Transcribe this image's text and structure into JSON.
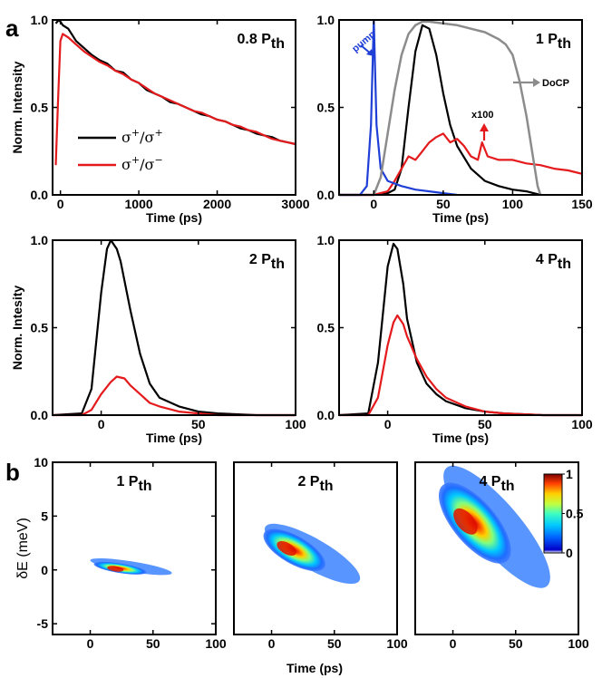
{
  "panel_labels": [
    "a",
    "b"
  ],
  "legend": {
    "entries": [
      {
        "label_main": "σ",
        "sup1": "+",
        "slash": "/",
        "label_main2": "σ",
        "sup2": "+",
        "color": "#000000"
      },
      {
        "label_main": "σ",
        "sup1": "+",
        "slash": "/",
        "label_main2": "σ",
        "sup2": "−",
        "color": "#e41a1c"
      }
    ]
  },
  "colors": {
    "co_polarized": "#000000",
    "cross_polarized": "#e41a1c",
    "pump": "#1f3fd6",
    "docp": "#8c8c8c"
  },
  "chart_data": [
    {
      "id": "a1",
      "type": "line",
      "annotation": {
        "main": "0.8 P",
        "sub": "th"
      },
      "xlabel": "Time (ps)",
      "ylabel": "Norm. Intensity",
      "xlim": [
        -100,
        3000
      ],
      "ylim": [
        0,
        1.0
      ],
      "xticks": [
        0,
        1000,
        2000,
        3000
      ],
      "yticks": [
        0.0,
        0.5,
        1.0
      ],
      "series": [
        {
          "key": "co",
          "x": [
            -60,
            -20,
            0,
            30,
            100,
            200,
            300,
            400,
            500,
            600,
            700,
            800,
            900,
            1000,
            1100,
            1200,
            1300,
            1400,
            1500,
            1600,
            1700,
            1800,
            1900,
            2000,
            2100,
            2200,
            2300,
            2400,
            2500,
            2600,
            2700,
            2800,
            2900,
            3000
          ],
          "y": [
            0.98,
            1.0,
            0.99,
            0.97,
            0.95,
            0.88,
            0.84,
            0.8,
            0.77,
            0.75,
            0.71,
            0.7,
            0.66,
            0.64,
            0.6,
            0.58,
            0.56,
            0.53,
            0.52,
            0.5,
            0.48,
            0.46,
            0.45,
            0.43,
            0.42,
            0.4,
            0.38,
            0.37,
            0.35,
            0.34,
            0.33,
            0.31,
            0.3,
            0.29
          ]
        },
        {
          "key": "cross",
          "x": [
            -60,
            -30,
            0,
            30,
            100,
            200,
            300,
            400,
            500,
            600,
            700,
            800,
            900,
            1000,
            1100,
            1200,
            1300,
            1400,
            1500,
            1600,
            1700,
            1800,
            1900,
            2000,
            2100,
            2200,
            2300,
            2400,
            2500,
            2600,
            2700,
            2800,
            2900,
            3000
          ],
          "y": [
            0.17,
            0.55,
            0.88,
            0.92,
            0.9,
            0.86,
            0.82,
            0.79,
            0.76,
            0.74,
            0.71,
            0.69,
            0.66,
            0.64,
            0.61,
            0.58,
            0.56,
            0.54,
            0.52,
            0.5,
            0.48,
            0.47,
            0.45,
            0.43,
            0.42,
            0.4,
            0.39,
            0.37,
            0.36,
            0.34,
            0.32,
            0.31,
            0.3,
            0.29
          ]
        }
      ]
    },
    {
      "id": "a2",
      "type": "line",
      "annotation": {
        "main": "1 P",
        "sub": "th"
      },
      "xlabel": "Time (ps)",
      "xlim": [
        -25,
        150
      ],
      "ylim": [
        0,
        1.0
      ],
      "xticks": [
        0,
        50,
        100,
        150
      ],
      "yticks": [
        0.0,
        0.5,
        1.0
      ],
      "labels": {
        "pump": "pump",
        "docp": "DoCP",
        "x100": "x100"
      },
      "series": [
        {
          "key": "co",
          "x": [
            -25,
            0,
            10,
            15,
            20,
            25,
            30,
            35,
            40,
            45,
            50,
            55,
            60,
            70,
            80,
            90,
            100,
            110,
            115,
            120
          ],
          "y": [
            0.0,
            0.0,
            0.01,
            0.03,
            0.15,
            0.5,
            0.82,
            0.97,
            0.95,
            0.8,
            0.58,
            0.4,
            0.28,
            0.15,
            0.08,
            0.05,
            0.03,
            0.02,
            0.01,
            0.0
          ]
        },
        {
          "key": "cross",
          "x": [
            -25,
            0,
            10,
            15,
            20,
            25,
            30,
            35,
            40,
            45,
            50,
            55,
            60,
            65,
            70,
            75,
            78,
            82,
            90,
            100,
            110,
            120,
            130,
            140,
            150
          ],
          "y": [
            0.0,
            0.0,
            0.02,
            0.08,
            0.15,
            0.22,
            0.2,
            0.25,
            0.3,
            0.33,
            0.35,
            0.3,
            0.32,
            0.28,
            0.22,
            0.2,
            0.3,
            0.22,
            0.2,
            0.2,
            0.18,
            0.17,
            0.15,
            0.14,
            0.12
          ]
        },
        {
          "key": "pump",
          "x": [
            -25,
            -10,
            -5,
            -2,
            0,
            2,
            5,
            10,
            20,
            30,
            40,
            50,
            60
          ],
          "y": [
            0.0,
            0.0,
            0.05,
            0.4,
            1.0,
            0.4,
            0.15,
            0.08,
            0.05,
            0.03,
            0.02,
            0.01,
            0.0
          ]
        },
        {
          "key": "docp",
          "x": [
            0,
            5,
            10,
            15,
            20,
            25,
            30,
            35,
            40,
            50,
            60,
            70,
            80,
            90,
            95,
            100,
            105,
            110,
            115,
            118,
            120
          ],
          "y": [
            0.0,
            0.1,
            0.35,
            0.6,
            0.8,
            0.92,
            0.97,
            0.99,
            0.99,
            0.98,
            0.97,
            0.95,
            0.93,
            0.89,
            0.86,
            0.8,
            0.65,
            0.45,
            0.2,
            0.05,
            0.0
          ]
        }
      ]
    },
    {
      "id": "a3",
      "type": "line",
      "annotation": {
        "main": "2 P",
        "sub": "th"
      },
      "xlabel": "Time (ps)",
      "ylabel": "Norm. Intesity",
      "xlim": [
        -25,
        100
      ],
      "ylim": [
        0,
        1.0
      ],
      "xticks": [
        0,
        50,
        100
      ],
      "yticks": [
        0.0,
        0.5,
        1.0
      ],
      "series": [
        {
          "key": "co",
          "x": [
            -25,
            -10,
            -5,
            0,
            3,
            5,
            8,
            10,
            15,
            20,
            25,
            30,
            40,
            50,
            60,
            80,
            100
          ],
          "y": [
            0.0,
            0.01,
            0.15,
            0.7,
            0.95,
            1.0,
            0.95,
            0.88,
            0.6,
            0.35,
            0.18,
            0.1,
            0.05,
            0.02,
            0.01,
            0.0,
            0.0
          ]
        },
        {
          "key": "cross",
          "x": [
            -25,
            -10,
            -5,
            0,
            5,
            8,
            12,
            15,
            20,
            25,
            30,
            40,
            50,
            60,
            80,
            100
          ],
          "y": [
            0.0,
            0.0,
            0.03,
            0.12,
            0.19,
            0.22,
            0.21,
            0.17,
            0.12,
            0.07,
            0.05,
            0.02,
            0.01,
            0.0,
            0.0,
            0.0
          ]
        }
      ]
    },
    {
      "id": "a4",
      "type": "line",
      "annotation": {
        "main": "4 P",
        "sub": "th"
      },
      "xlabel": "Time (ps)",
      "xlim": [
        -25,
        100
      ],
      "ylim": [
        0,
        1.0
      ],
      "xticks": [
        0,
        50,
        100
      ],
      "yticks": [
        0.0,
        0.5,
        1.0
      ],
      "series": [
        {
          "key": "co",
          "x": [
            -25,
            -10,
            -5,
            0,
            3,
            5,
            8,
            10,
            15,
            20,
            25,
            30,
            40,
            50,
            60,
            80,
            100
          ],
          "y": [
            0.0,
            0.01,
            0.3,
            0.85,
            0.98,
            0.95,
            0.75,
            0.55,
            0.3,
            0.18,
            0.12,
            0.08,
            0.04,
            0.02,
            0.01,
            0.0,
            0.0
          ]
        },
        {
          "key": "cross",
          "x": [
            -25,
            -10,
            -5,
            0,
            3,
            5,
            8,
            10,
            15,
            20,
            25,
            30,
            40,
            50,
            60,
            80,
            100
          ],
          "y": [
            0.0,
            0.0,
            0.1,
            0.4,
            0.53,
            0.57,
            0.52,
            0.45,
            0.32,
            0.22,
            0.15,
            0.1,
            0.05,
            0.02,
            0.01,
            0.0,
            0.0
          ]
        }
      ]
    },
    {
      "id": "b1",
      "type": "heatmap",
      "annotation": {
        "main": "1 P",
        "sub": "th"
      },
      "ylabel": "δE (meV)",
      "xlim": [
        -30,
        100
      ],
      "ylim": [
        -6,
        10
      ],
      "xticks": [
        0,
        50,
        100
      ],
      "yticks": [
        -5,
        0,
        5,
        10
      ],
      "blob": {
        "x0": 0,
        "x1": 65,
        "y0": 0.9,
        "y1": -0.3,
        "peak_x": 20,
        "peak_y": 0.1,
        "width": 0.9
      }
    },
    {
      "id": "b2",
      "type": "heatmap",
      "annotation": {
        "main": "2 P",
        "sub": "th"
      },
      "xlabel": "Time (ps)",
      "xlim": [
        -30,
        100
      ],
      "ylim": [
        -6,
        10
      ],
      "xticks": [
        0,
        50,
        100
      ],
      "blob": {
        "x0": -5,
        "x1": 70,
        "y0": 4.0,
        "y1": -1.0,
        "peak_x": 12,
        "peak_y": 2.0,
        "width": 2.6
      }
    },
    {
      "id": "b3",
      "type": "heatmap",
      "annotation": {
        "main": "4 P",
        "sub": "th"
      },
      "xlim": [
        -30,
        100
      ],
      "ylim": [
        -6,
        10
      ],
      "xticks": [
        0,
        50,
        100
      ],
      "colorbar": {
        "ticks": [
          "1",
          "0.5",
          "0"
        ],
        "values": [
          1,
          0.5,
          0
        ]
      },
      "blob": {
        "x0": -5,
        "x1": 75,
        "y0": 9.5,
        "y1": -1.5,
        "peak_x": 10,
        "peak_y": 4.5,
        "width": 4.0
      }
    }
  ],
  "axis_labels": {
    "b_shared_xlabel": "Time (ps)"
  }
}
